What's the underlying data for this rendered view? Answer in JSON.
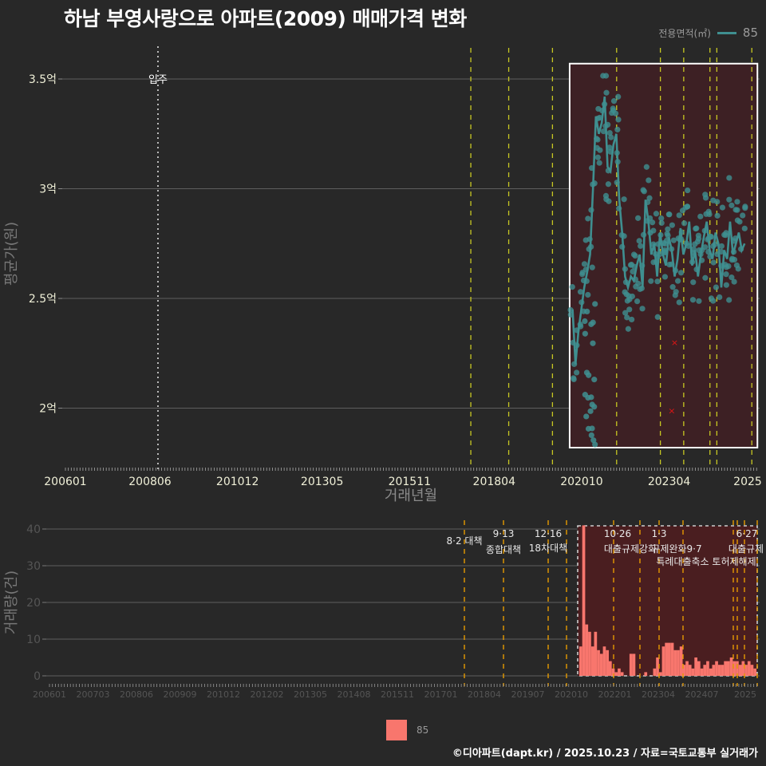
{
  "title": "하남 부영사랑으로 아파트(2009) 매매가격 변화",
  "legend_top": {
    "label": "전용면적(㎡)",
    "value": "85",
    "color": "#3f8f90"
  },
  "legend_bottom": {
    "value": "85",
    "color": "#f8766d"
  },
  "footer": "©디아파트(dapt.kr) / 2025.10.23 / 자료=국토교통부 실거래가",
  "chart_data": [
    {
      "type": "line",
      "title": "하남 부영사랑으로 아파트(2009) 매매가격 변화",
      "xlabel": "거래년월",
      "ylabel": "평균가(원)",
      "x_ticks": [
        "200601",
        "200806",
        "201012",
        "201305",
        "201511",
        "201804",
        "202010",
        "202304",
        "2025"
      ],
      "y_ticks": [
        {
          "v": 2.0,
          "label": "2억"
        },
        {
          "v": 2.5,
          "label": "2.5억"
        },
        {
          "v": 3.0,
          "label": "3억"
        },
        {
          "v": 3.5,
          "label": "3.5억"
        }
      ],
      "ylim": [
        1.74,
        3.66
      ],
      "grid": true,
      "annotation_move_in": {
        "label": "입주",
        "month": "200809"
      },
      "highlight_box": {
        "from": "202010",
        "to": "202510",
        "ymin": 1.82,
        "ymax": 3.57
      },
      "policy_lines": [
        "201708",
        "201809",
        "201912",
        "202110",
        "202301",
        "202309",
        "202406",
        "202410",
        "202510"
      ],
      "series": [
        {
          "name": "85",
          "color": "#3f8f90",
          "x": [
            "202011",
            "202012",
            "202101",
            "202102",
            "202103",
            "202104",
            "202105",
            "202106",
            "202107",
            "202108",
            "202109",
            "202110",
            "202111",
            "202112",
            "202201",
            "202202",
            "202203",
            "202204",
            "202205",
            "202206",
            "202207",
            "202208",
            "202209",
            "202210",
            "202211",
            "202212",
            "202301",
            "202302",
            "202303",
            "202304",
            "202305",
            "202306",
            "202307",
            "202308",
            "202309",
            "202310",
            "202311",
            "202312",
            "202401",
            "202402",
            "202403",
            "202404",
            "202405",
            "202406",
            "202407",
            "202408",
            "202409",
            "202410",
            "202411",
            "202412",
            "202501",
            "202502",
            "202503",
            "202504",
            "202505",
            "202506",
            "202507",
            "202508",
            "202509",
            "202510"
          ],
          "values": [
            2.45,
            2.2,
            2.35,
            2.45,
            2.55,
            2.62,
            2.7,
            3.0,
            3.33,
            3.25,
            3.3,
            3.42,
            3.1,
            3.08,
            3.2,
            3.25,
            2.95,
            2.8,
            2.6,
            2.55,
            2.6,
            2.58,
            2.65,
            2.7,
            2.55,
            2.95,
            2.85,
            2.7,
            2.75,
            2.6,
            2.8,
            2.7,
            2.65,
            2.78,
            2.72,
            2.6,
            2.68,
            2.82,
            2.7,
            2.75,
            2.85,
            2.65,
            2.72,
            2.6,
            2.7,
            2.78,
            2.85,
            2.72,
            2.68,
            2.8,
            2.75,
            2.55,
            2.72,
            2.68,
            2.85,
            2.7,
            2.75,
            2.8,
            2.72,
            2.75
          ]
        }
      ],
      "outliers_x": [
        {
          "month": "202310",
          "value": 2.3
        },
        {
          "month": "202309",
          "value": 1.99
        }
      ]
    },
    {
      "type": "bar",
      "xlabel": "",
      "ylabel": "거래량(건)",
      "y_ticks": [
        0,
        10,
        20,
        30,
        40
      ],
      "ylim": [
        0,
        41
      ],
      "x_ticks": [
        "200601",
        "200703",
        "200806",
        "200909",
        "201012",
        "201202",
        "201305",
        "201408",
        "201511",
        "201701",
        "201804",
        "201907",
        "202010",
        "202201",
        "202304",
        "202407",
        "2025"
      ],
      "policy_annotations": [
        {
          "date": "8·2 대책",
          "month": "201708"
        },
        {
          "date": "9·13",
          "label": "종합대책",
          "month": "201809"
        },
        {
          "date": "12·16",
          "label": "18차대책",
          "month": "201912"
        },
        {
          "date": "10·26",
          "label": "대출규제강화",
          "month": "202110"
        },
        {
          "date": "1·3",
          "label": "규제완화",
          "month": "202301"
        },
        {
          "date": "9·7",
          "label": "특례대출축소",
          "month": "202309"
        },
        {
          "date": "",
          "label": "토허제해제",
          "month": "202502"
        },
        {
          "date": "6·27",
          "label": "대출규제",
          "month": "202506"
        },
        {
          "date": "10",
          "label": "",
          "month": "202510"
        }
      ],
      "highlight_box": {
        "from": "202010",
        "to": "202510"
      },
      "series": [
        {
          "name": "85",
          "color": "#f8766d",
          "x_start": "202010",
          "values": [
            8,
            41,
            14,
            12,
            8,
            12,
            7,
            6,
            8,
            7,
            4,
            2,
            1,
            2,
            1,
            0,
            0,
            6,
            6,
            0,
            0,
            0,
            1,
            0,
            0,
            2,
            5,
            1,
            8,
            9,
            9,
            9,
            7,
            7,
            8,
            3,
            4,
            3,
            2,
            5,
            4,
            2,
            3,
            4,
            2,
            3,
            4,
            3,
            3,
            4,
            4,
            5,
            4,
            4,
            3,
            4,
            3,
            4,
            3,
            2
          ]
        }
      ]
    }
  ]
}
